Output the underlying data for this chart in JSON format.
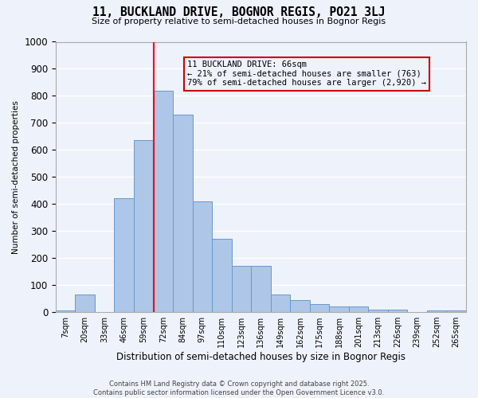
{
  "title1": "11, BUCKLAND DRIVE, BOGNOR REGIS, PO21 3LJ",
  "title2": "Size of property relative to semi-detached houses in Bognor Regis",
  "xlabel": "Distribution of semi-detached houses by size in Bognor Regis",
  "ylabel": "Number of semi-detached properties",
  "categories": [
    "7sqm",
    "20sqm",
    "33sqm",
    "46sqm",
    "59sqm",
    "72sqm",
    "84sqm",
    "97sqm",
    "110sqm",
    "123sqm",
    "136sqm",
    "149sqm",
    "162sqm",
    "175sqm",
    "188sqm",
    "201sqm",
    "213sqm",
    "226sqm",
    "239sqm",
    "252sqm",
    "265sqm"
  ],
  "values": [
    5,
    65,
    0,
    420,
    635,
    820,
    730,
    410,
    270,
    170,
    170,
    65,
    45,
    30,
    20,
    20,
    10,
    10,
    0,
    5,
    5
  ],
  "bar_color": "#aec6e8",
  "bar_edge_color": "#6699cc",
  "vline_pos": 5,
  "annotation_text": "11 BUCKLAND DRIVE: 66sqm\n← 21% of semi-detached houses are smaller (763)\n79% of semi-detached houses are larger (2,920) →",
  "annotation_box_color": "#cc0000",
  "ylim": [
    0,
    1000
  ],
  "yticks": [
    0,
    100,
    200,
    300,
    400,
    500,
    600,
    700,
    800,
    900,
    1000
  ],
  "footer1": "Contains HM Land Registry data © Crown copyright and database right 2025.",
  "footer2": "Contains public sector information licensed under the Open Government Licence v3.0.",
  "bg_color": "#eef2fb",
  "grid_color": "#ffffff"
}
